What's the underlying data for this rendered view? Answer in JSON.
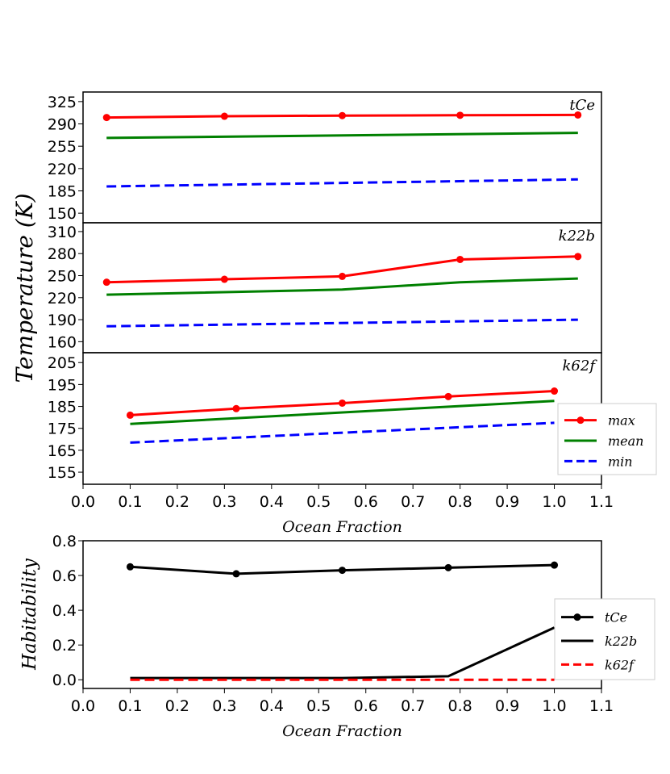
{
  "colors": {
    "max": "#ff0000",
    "mean": "#008000",
    "min": "#0000ff",
    "habitability": "#000000",
    "k62f_hab": "#ff0000"
  },
  "temperature_ylabel": "Temperature (K)",
  "habitability_ylabel": "Habitability",
  "xlabel": "Ocean Fraction",
  "chart_data": [
    {
      "type": "line",
      "panel_label": "tCe",
      "xlabel": "Ocean Fraction",
      "ylabel": "Temperature (K)",
      "xlim": [
        0.0,
        1.1
      ],
      "ylim": [
        135,
        340
      ],
      "yticks": [
        150,
        185,
        220,
        255,
        290,
        325
      ],
      "legend": null,
      "series": [
        {
          "name": "max",
          "x": [
            0.05,
            0.3,
            0.55,
            0.8,
            1.05
          ],
          "values": [
            300,
            302,
            303,
            303.5,
            304
          ],
          "markers": true,
          "style": "solid"
        },
        {
          "name": "mean",
          "x": [
            0.05,
            1.05
          ],
          "values": [
            268,
            276
          ],
          "markers": false,
          "style": "solid"
        },
        {
          "name": "min",
          "x": [
            0.05,
            1.05
          ],
          "values": [
            192,
            203
          ],
          "markers": false,
          "style": "dashed"
        }
      ]
    },
    {
      "type": "line",
      "panel_label": "k22b",
      "xlabel": "Ocean Fraction",
      "ylabel": "Temperature (K)",
      "xlim": [
        0.0,
        1.1
      ],
      "ylim": [
        145,
        322
      ],
      "yticks": [
        160,
        190,
        220,
        250,
        280,
        310
      ],
      "legend": null,
      "series": [
        {
          "name": "max",
          "x": [
            0.05,
            0.3,
            0.55,
            0.8,
            1.05
          ],
          "values": [
            241,
            245,
            249,
            272,
            276
          ],
          "markers": true,
          "style": "solid"
        },
        {
          "name": "mean",
          "x": [
            0.05,
            0.55,
            0.8,
            1.05
          ],
          "values": [
            224,
            231,
            241,
            246
          ],
          "markers": false,
          "style": "solid"
        },
        {
          "name": "min",
          "x": [
            0.05,
            1.05
          ],
          "values": [
            181,
            190
          ],
          "markers": false,
          "style": "dashed"
        }
      ]
    },
    {
      "type": "line",
      "panel_label": "k62f",
      "xlabel": "Ocean Fraction",
      "ylabel": "Temperature (K)",
      "xlim": [
        0.0,
        1.1
      ],
      "ylim": [
        149.5,
        209.5
      ],
      "yticks": [
        155,
        165,
        175,
        185,
        195,
        205
      ],
      "xticks": [
        0.0,
        0.1,
        0.2,
        0.3,
        0.4,
        0.5,
        0.6,
        0.7,
        0.8,
        0.9,
        1.0,
        1.1
      ],
      "legend": "right",
      "series": [
        {
          "name": "max",
          "x": [
            0.1,
            0.325,
            0.55,
            0.775,
            1.0
          ],
          "values": [
            181,
            184,
            186.5,
            189.5,
            192
          ],
          "markers": true,
          "style": "solid"
        },
        {
          "name": "mean",
          "x": [
            0.1,
            1.0
          ],
          "values": [
            177,
            187.5
          ],
          "markers": false,
          "style": "solid"
        },
        {
          "name": "min",
          "x": [
            0.1,
            1.0
          ],
          "values": [
            168.5,
            177.5
          ],
          "markers": false,
          "style": "dashed"
        }
      ]
    },
    {
      "type": "line",
      "xlabel": "Ocean Fraction",
      "ylabel": "Habitability",
      "xlim": [
        0.0,
        1.1
      ],
      "ylim": [
        -0.05,
        0.8
      ],
      "yticks": [
        0.0,
        0.2,
        0.4,
        0.6,
        0.8
      ],
      "xticks": [
        0.0,
        0.1,
        0.2,
        0.3,
        0.4,
        0.5,
        0.6,
        0.7,
        0.8,
        0.9,
        1.0,
        1.1
      ],
      "legend": "right",
      "series": [
        {
          "name": "tCe",
          "x": [
            0.1,
            0.325,
            0.55,
            0.775,
            1.0
          ],
          "values": [
            0.65,
            0.61,
            0.63,
            0.645,
            0.66
          ],
          "markers": true,
          "style": "solid"
        },
        {
          "name": "k22b",
          "x": [
            0.1,
            0.325,
            0.55,
            0.775,
            1.0
          ],
          "values": [
            0.01,
            0.01,
            0.01,
            0.02,
            0.3
          ],
          "markers": false,
          "style": "solid"
        },
        {
          "name": "k62f",
          "x": [
            0.1,
            1.0
          ],
          "values": [
            0.0,
            0.0
          ],
          "markers": false,
          "style": "dashed"
        }
      ]
    }
  ]
}
